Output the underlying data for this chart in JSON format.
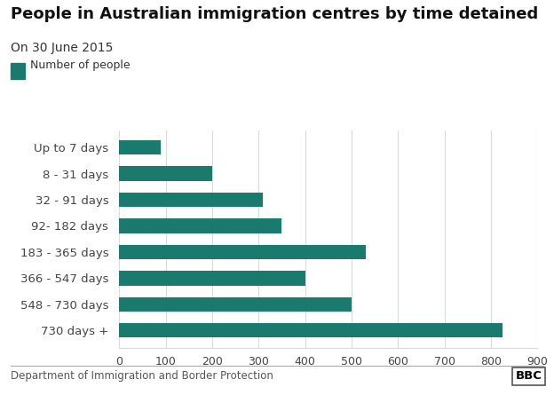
{
  "title": "People in Australian immigration centres by time detained",
  "subtitle": "On 30 June 2015",
  "legend_label": "Number of people",
  "categories": [
    "Up to 7 days",
    "8 - 31 days",
    "32 - 91 days",
    "92- 182 days",
    "183 - 365 days",
    "366 - 547 days",
    "548 - 730 days",
    "730 days +"
  ],
  "values": [
    90,
    200,
    310,
    350,
    530,
    400,
    500,
    825
  ],
  "bar_color": "#1a7a6e",
  "background_color": "#ffffff",
  "grid_color": "#d9d9d9",
  "xlim": [
    0,
    900
  ],
  "xticks": [
    0,
    100,
    200,
    300,
    400,
    500,
    600,
    700,
    800,
    900
  ],
  "footnote": "Department of Immigration and Border Protection",
  "bbc_label": "BBC",
  "title_fontsize": 13,
  "subtitle_fontsize": 10,
  "tick_fontsize": 9,
  "category_fontsize": 9.5,
  "footnote_fontsize": 8.5
}
